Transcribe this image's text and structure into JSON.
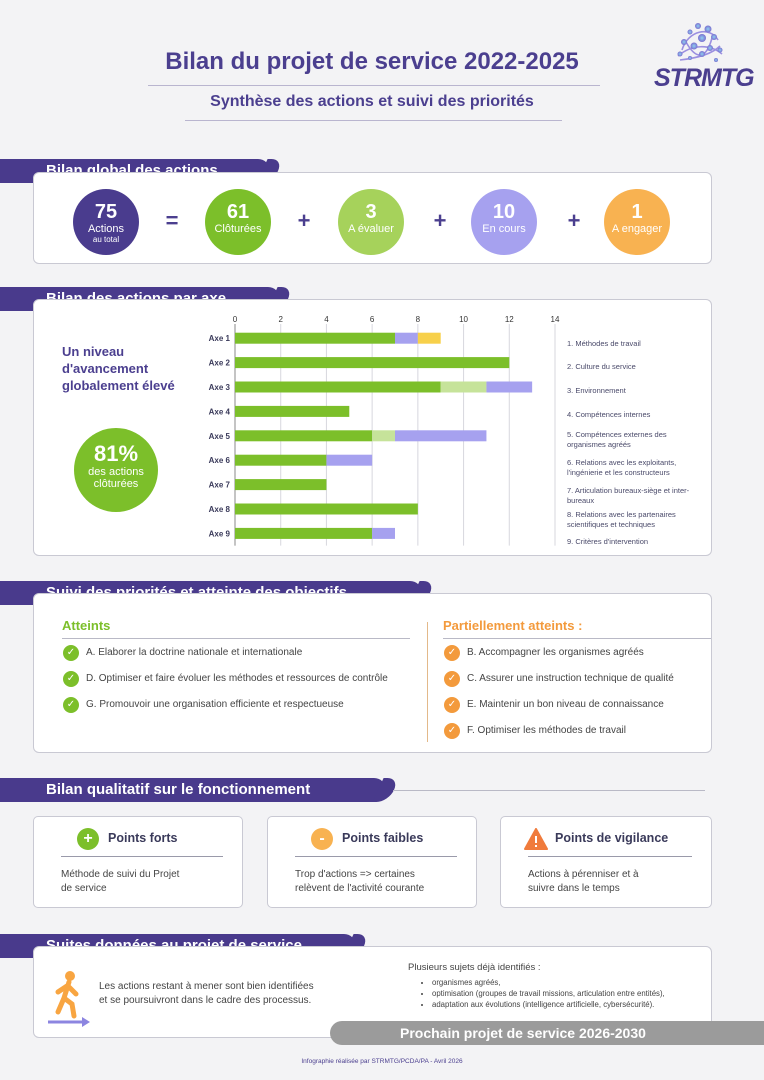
{
  "header": {
    "title": "Bilan du projet de service 2022-2025",
    "subtitle": "Synthèse des actions et suivi des priorités",
    "logo_text": "STRMTG"
  },
  "global": {
    "heading": "Bilan global des actions",
    "operators": [
      "=",
      "+",
      "+",
      "+"
    ],
    "items": [
      {
        "value": "75",
        "label": "Actions",
        "sublabel": "au total",
        "color": "#4a3c8e"
      },
      {
        "value": "61",
        "label": "Clôturées",
        "color": "#7cbf2a"
      },
      {
        "value": "3",
        "label": "A évaluer",
        "color": "#a6d25b"
      },
      {
        "value": "10",
        "label": "En cours",
        "color": "#a6a1ef"
      },
      {
        "value": "1",
        "label": "A engager",
        "color": "#f8b251"
      }
    ]
  },
  "by_axis": {
    "heading": "Bilan des actions par axe",
    "lead_lines": [
      "Un niveau",
      "d'avancement",
      "globalement élevé"
    ],
    "percent": "81%",
    "percent_label_lines": [
      "des actions",
      "clôturées"
    ],
    "legend": [
      "1. Méthodes de travail",
      "2. Culture du service",
      "3. Environnement",
      "4. Compétences internes",
      "5. Compétences externes des organismes agréés",
      "6. Relations avec les exploitants, l'ingénierie et les constructeurs",
      "7. Articulation bureaux-siège et inter-bureaux",
      "8. Relations avec les partenaires scientifiques et techniques",
      "9. Critères d'intervention"
    ]
  },
  "chart_data": {
    "type": "bar",
    "orientation": "horizontal",
    "stacked": true,
    "categories": [
      "Axe 1",
      "Axe 2",
      "Axe 3",
      "Axe 4",
      "Axe 5",
      "Axe 6",
      "Axe 7",
      "Axe 8",
      "Axe 9"
    ],
    "xlim": [
      0,
      14
    ],
    "xticks": [
      0,
      2,
      4,
      6,
      8,
      10,
      12,
      14
    ],
    "grid": true,
    "series": [
      {
        "color": "#7cbf2a",
        "values": [
          7,
          12,
          9,
          5,
          6,
          4,
          4,
          8,
          6
        ]
      },
      {
        "color": "#c6e39a",
        "values": [
          0,
          0,
          2,
          0,
          1,
          0,
          0,
          0,
          0
        ]
      },
      {
        "color": "#a6a1ef",
        "values": [
          1,
          0,
          2,
          0,
          4,
          2,
          0,
          0,
          1
        ]
      },
      {
        "color": "#f7d04a",
        "values": [
          1,
          0,
          0,
          0,
          0,
          0,
          0,
          0,
          0
        ]
      }
    ]
  },
  "priorities": {
    "heading": "Suivi des priorités et atteinte des objectifs",
    "reached": {
      "title": "Atteints",
      "color": "#7cbf2a",
      "items": [
        "A. Elaborer la doctrine nationale et internationale",
        "D. Optimiser et faire évoluer les méthodes et ressources de contrôle",
        "G. Promouvoir une organisation efficiente et respectueuse"
      ]
    },
    "partial": {
      "title": "Partiellement atteints :",
      "color": "#f39a3c",
      "items": [
        "B. Accompagner les organismes agréés",
        "C. Assurer une instruction technique de qualité",
        "E. Maintenir un bon niveau de connaissance",
        "F. Optimiser les méthodes de travail"
      ]
    }
  },
  "qualitative": {
    "heading": "Bilan qualitatif sur le fonctionnement",
    "cards": [
      {
        "title": "Points forts",
        "icon": "plus-icon",
        "glyph": "+",
        "color": "#7cbf2a",
        "text_lines": [
          "Méthode de suivi du Projet",
          "de service"
        ]
      },
      {
        "title": "Points faibles",
        "icon": "minus-icon",
        "glyph": "-",
        "color": "#f8b251",
        "text_lines": [
          "Trop d'actions => certaines",
          "relèvent de l'activité courante"
        ]
      },
      {
        "title": "Points de vigilance",
        "icon": "warning-icon",
        "glyph": "!",
        "color": "#f07b3c",
        "text_lines": [
          "Actions à pérenniser et à",
          "suivre dans le temps"
        ]
      }
    ]
  },
  "follow_up": {
    "heading": "Suites données au projet de service",
    "text_lines": [
      "Les actions restant à mener sont bien identifiées",
      "et se poursuivront dans le cadre des processus."
    ],
    "subjects_title": "Plusieurs sujets déjà identifiés :",
    "subjects": [
      "organismes agréés,",
      "optimisation (groupes de travail missions, articulation entre entités),",
      "adaptation aux évolutions (intelligence artificielle, cybersécurité)."
    ],
    "next": "Prochain projet de service 2026-2030"
  },
  "footer": "Infographie réalisée par STRMTG/PCDA/PA - Avril 2026"
}
